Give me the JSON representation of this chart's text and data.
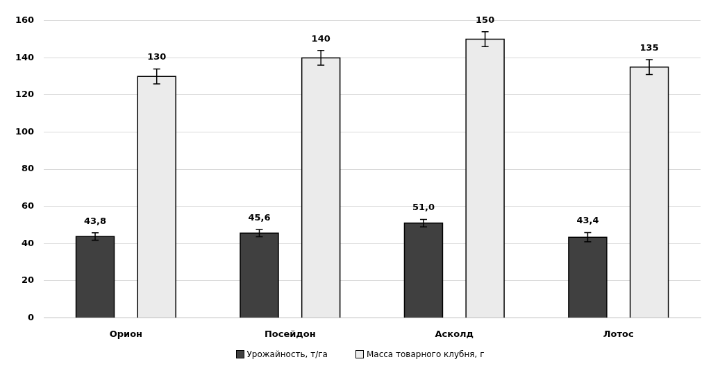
{
  "chart_data": {
    "type": "bar",
    "categories": [
      "Орион",
      "Посейдон",
      "Асколд",
      "Лотос"
    ],
    "series": [
      {
        "name": "Урожайность, т/га",
        "color": "#404040",
        "values": [
          43.8,
          45.6,
          51.0,
          43.4
        ],
        "errors": [
          2,
          2,
          2,
          2.5
        ],
        "value_labels": [
          "43,8",
          "45,6",
          "51,0",
          "43,4"
        ]
      },
      {
        "name": "Масса товарного клубня, г",
        "color": "#ebebeb",
        "values": [
          130,
          140,
          150,
          135
        ],
        "errors": [
          4,
          4,
          4,
          4
        ],
        "value_labels": [
          "130",
          "140",
          "150",
          "135"
        ]
      }
    ],
    "ylim": [
      0,
      160
    ],
    "yticks": [
      0,
      20,
      40,
      60,
      80,
      100,
      120,
      140,
      160
    ],
    "grid": "y",
    "legend": "bottom"
  }
}
